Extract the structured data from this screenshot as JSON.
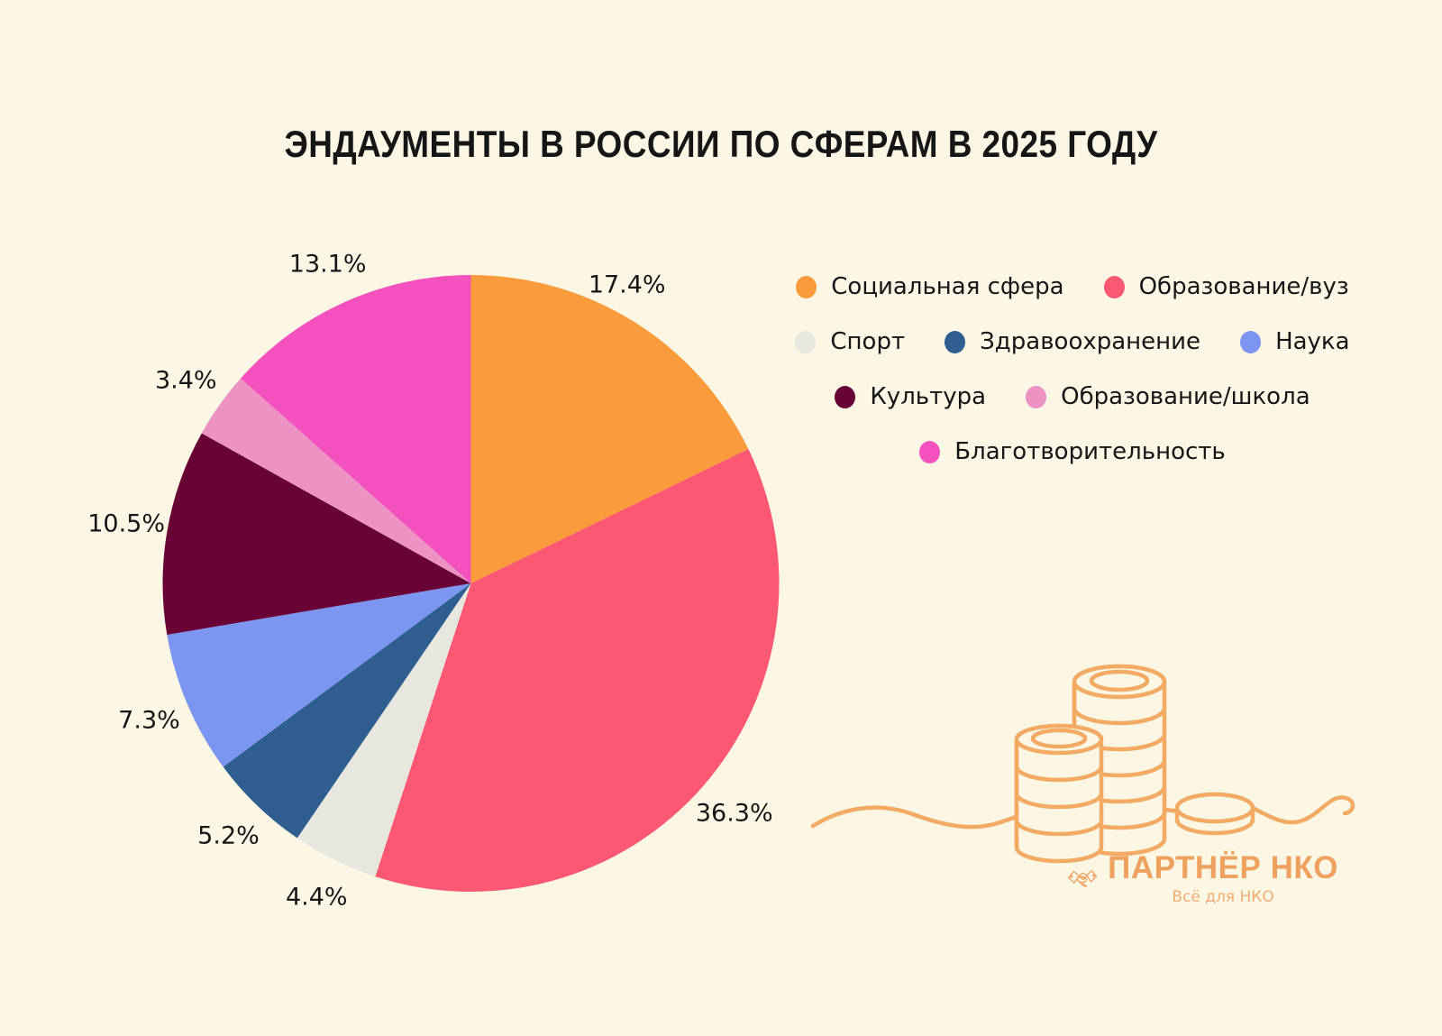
{
  "title": "ЭНДАУМЕНТЫ В РОССИИ ПО СФЕРАМ В 2025 ГОДУ",
  "chart_data": {
    "type": "pie",
    "title": "ЭНДАУМЕНТЫ В РОССИИ ПО СФЕРАМ В 2025 ГОДУ",
    "direction": "clockwise",
    "start_angle_deg": 0,
    "legend_position": "right",
    "series": [
      {
        "name": "Социальная сфера",
        "value": 17.4,
        "label": "17.4%",
        "color": "#FB9C3C"
      },
      {
        "name": "Образование/вуз",
        "value": 36.3,
        "label": "36.3%",
        "color": "#FC5873"
      },
      {
        "name": "Спорт",
        "value": 4.4,
        "label": "4.4%",
        "color": "#E8E7DF"
      },
      {
        "name": "Здравоохранение",
        "value": 5.2,
        "label": "5.2%",
        "color": "#2E5F90"
      },
      {
        "name": "Наука",
        "value": 7.3,
        "label": "7.3%",
        "color": "#7C95F1"
      },
      {
        "name": "Культура",
        "value": 10.5,
        "label": "10.5%",
        "color": "#690235"
      },
      {
        "name": "Образование/школа",
        "value": 3.4,
        "label": "3.4%",
        "color": "#EC93C4"
      },
      {
        "name": "Благотворительность",
        "value": 13.1,
        "label": "13.1%",
        "color": "#F351BD"
      }
    ],
    "legend_rows": [
      [
        0,
        1
      ],
      [
        2,
        3,
        4
      ],
      [
        5,
        6
      ],
      [
        7
      ]
    ]
  },
  "footer": {
    "brand": "ПАРТНЁР НКО",
    "tagline": "Всё для НКО"
  },
  "colors": {
    "background": "#FCF6E5",
    "text": "#161616",
    "brand_orange": "#EFA25E",
    "illustration_orange": "#F3AA63"
  }
}
